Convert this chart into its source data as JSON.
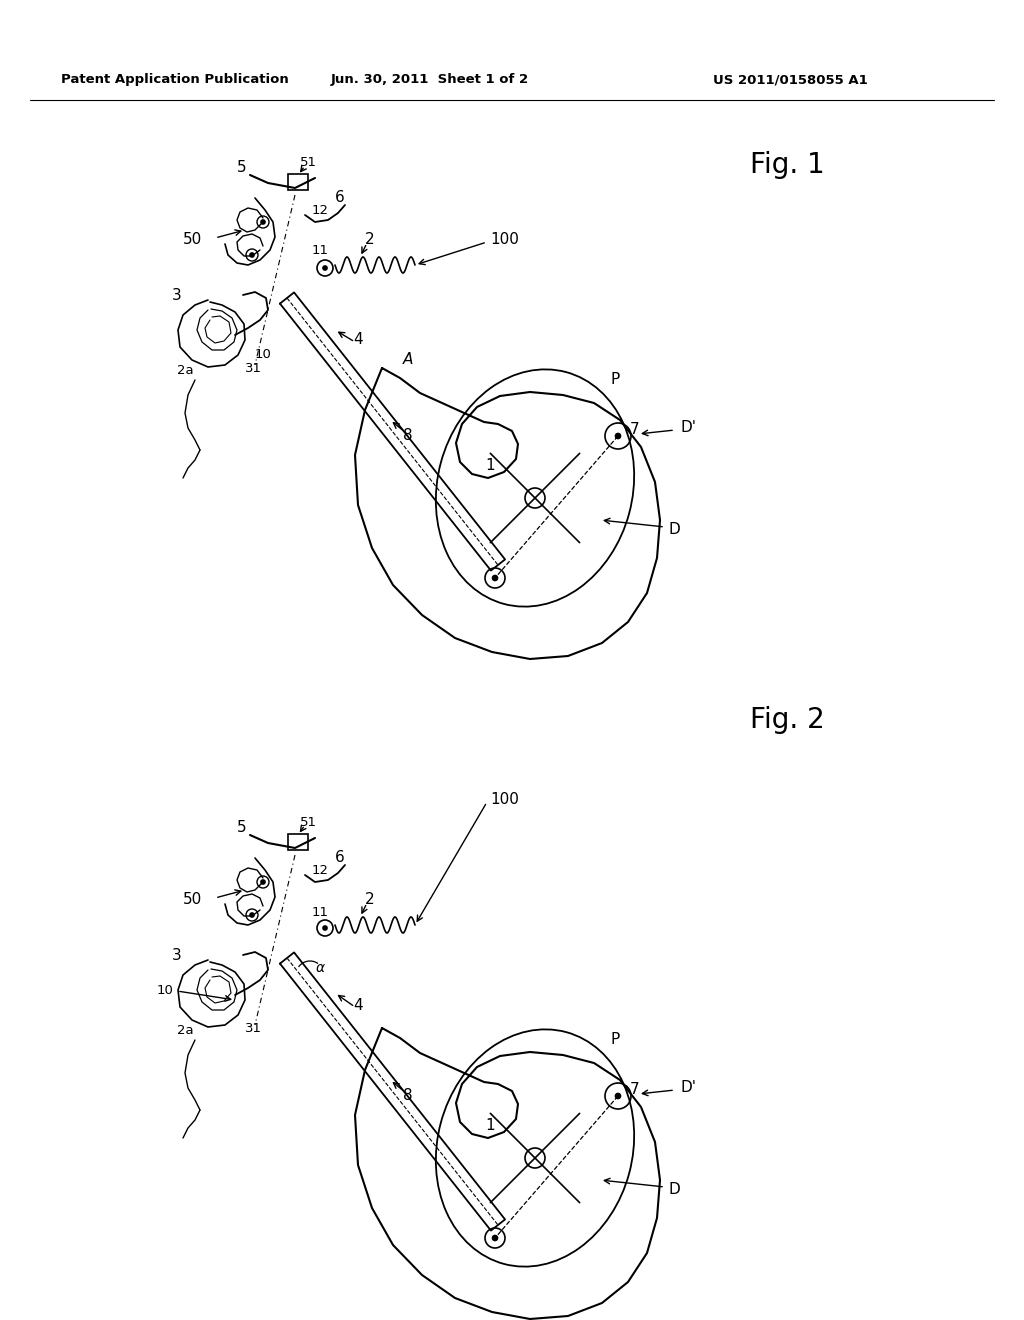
{
  "background_color": "#ffffff",
  "header_left": "Patent Application Publication",
  "header_center": "Jun. 30, 2011  Sheet 1 of 2",
  "header_right": "US 2011/0158055 A1",
  "fig1_label": "Fig. 1",
  "fig2_label": "Fig. 2",
  "line_color": "#000000",
  "text_color": "#000000"
}
